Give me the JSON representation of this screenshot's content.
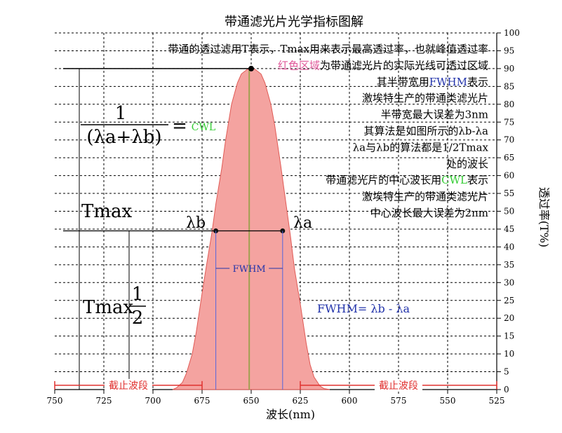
{
  "title": "带通滤光片光学指标图解",
  "y_axis_label": "透过率(T%)",
  "x_axis_label": "波长(nm)",
  "x_ticks": [
    "525",
    "550",
    "575",
    "600",
    "625",
    "650",
    "675",
    "700",
    "725",
    "750"
  ],
  "y_ticks": [
    "0",
    "5",
    "10",
    "15",
    "20",
    "25",
    "30",
    "35",
    "40",
    "45",
    "50",
    "55",
    "60",
    "65",
    "70",
    "75",
    "80",
    "85",
    "90",
    "95",
    "100"
  ],
  "notes": [
    "带通的透过滤用T表示，Tmax用来表示最高透过率，也就峰值透过率",
    "红色区域为带通滤光片的实际光线可透过区域",
    "其半带宽用FWHM表示",
    "激埃特生产的带通类滤光片",
    "半带宽最大误差为3nm",
    "其算法是如图所示的λb-λa",
    "λa与λb的算法都是1/2Tmax",
    "处的波长",
    "带通滤光片的中心波长用CWL表示",
    "激埃特生产的带通类滤光片",
    "中心波长最大误差为2nm"
  ],
  "highlights": {
    "red_region": "红色区域",
    "fwhm": "FWHM",
    "cwl": "CWL"
  },
  "labels": {
    "cwl": "CWL",
    "equals": "=",
    "formula_num": "1",
    "formula_den": "(λa+λb)",
    "tmax": "Tmax",
    "half_num": "1",
    "half_den": "2",
    "half_tmax": "Tmax",
    "lambda_a": "λa",
    "lambda_b": "λb",
    "fwhm_bar": "FWHM",
    "fwhm_formula": "FWHM= λb - λa",
    "cutoff_left": "截止波段",
    "cutoff_right": "截止波段"
  },
  "colors": {
    "passband_fill": "#f4a3a0",
    "passband_stroke": "#e05a55",
    "cwl_text": "#33cc33",
    "fwhm_text": "#2233aa",
    "red_text": "#e05a9a",
    "cutoff_line": "#e0312f",
    "center_line": "#a0a050",
    "grid": "#000000"
  },
  "chart_data": {
    "type": "area",
    "xlim": [
      525,
      750
    ],
    "ylim": [
      0,
      100
    ],
    "x_axis_reversed": true,
    "grid": true,
    "series": [
      {
        "x": [
          610,
          613,
          615,
          618,
          620,
          622,
          625,
          628,
          630,
          633,
          635,
          638,
          640,
          643,
          645,
          648,
          650,
          652,
          655,
          657,
          660,
          663,
          665,
          668,
          670,
          673,
          675,
          678,
          680,
          683,
          685,
          688,
          690
        ],
        "y": [
          0,
          0.3,
          1.0,
          3.5,
          7,
          13,
          24,
          34,
          43,
          55,
          63,
          74,
          80,
          86,
          88.5,
          89.8,
          90,
          89.8,
          88.5,
          86,
          80,
          70,
          62,
          52,
          44,
          34,
          27,
          16,
          10,
          4.5,
          2,
          0.5,
          0
        ]
      }
    ],
    "annotations": [
      {
        "label": "λa",
        "x": 634,
        "y": 44.5
      },
      {
        "label": "λb",
        "x": 668,
        "y": 44.5
      },
      {
        "label": "CWL",
        "x": 651
      }
    ]
  }
}
